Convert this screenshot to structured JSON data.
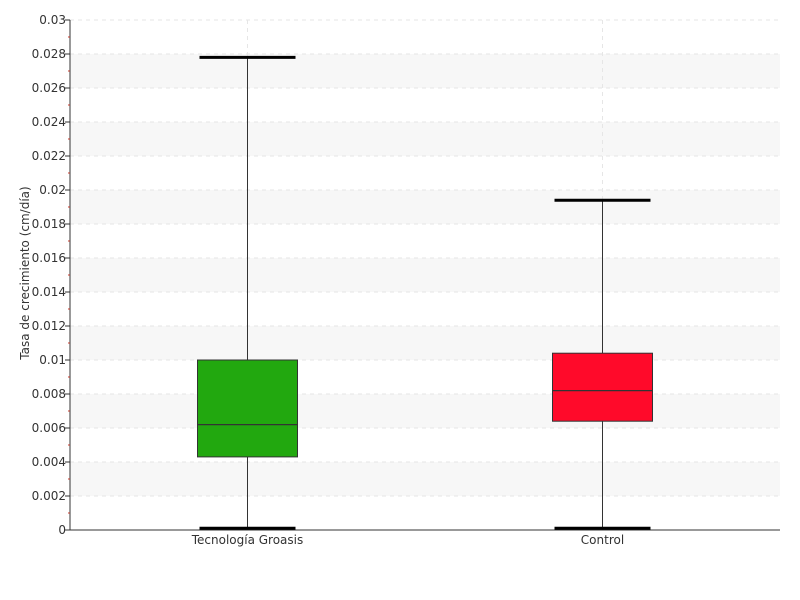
{
  "chart_data": {
    "type": "boxplot",
    "ylabel": "Tasa de crecimiento (cm/día)",
    "ylim": [
      0,
      0.03
    ],
    "yticks": [
      {
        "value": 0,
        "label": "0"
      },
      {
        "value": 0.002,
        "label": "0.002"
      },
      {
        "value": 0.004,
        "label": "0.004"
      },
      {
        "value": 0.006,
        "label": "0.006"
      },
      {
        "value": 0.008,
        "label": "0.008"
      },
      {
        "value": 0.01,
        "label": "0.01"
      },
      {
        "value": 0.012,
        "label": "0.012"
      },
      {
        "value": 0.014,
        "label": "0.014"
      },
      {
        "value": 0.016,
        "label": "0.016"
      },
      {
        "value": 0.018,
        "label": "0.018"
      },
      {
        "value": 0.02,
        "label": "0.02"
      },
      {
        "value": 0.022,
        "label": "0.022"
      },
      {
        "value": 0.024,
        "label": "0.024"
      },
      {
        "value": 0.026,
        "label": "0.026"
      },
      {
        "value": 0.028,
        "label": "0.028"
      },
      {
        "value": 0.03,
        "label": "0.03"
      }
    ],
    "grid": true,
    "categories": [
      "Tecnología Groasis",
      "Control"
    ],
    "series": [
      {
        "category": "Tecnología Groasis",
        "min": 0.0001,
        "q1": 0.0043,
        "median": 0.0062,
        "q3": 0.01,
        "max": 0.0278,
        "color": "#22a80f"
      },
      {
        "category": "Control",
        "min": 0.0001,
        "q1": 0.0064,
        "median": 0.0082,
        "q3": 0.0104,
        "max": 0.0194,
        "color": "#ff0a2a"
      }
    ]
  }
}
